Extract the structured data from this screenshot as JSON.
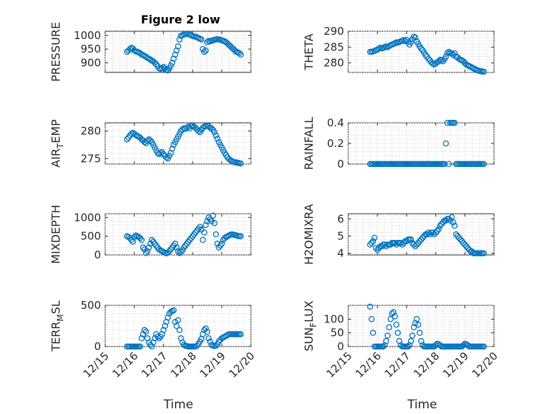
{
  "figure": {
    "title": "Figure 2 low",
    "x_tick_labels": [
      "12/15",
      "12/16",
      "12/17",
      "12/18",
      "12/19",
      "12/20"
    ],
    "x_label": "Time",
    "marker_color": "#0072BD"
  },
  "chart_data": [
    {
      "type": "scatter",
      "ylabel": "PRESSURE",
      "title": "Figure 2 low",
      "xlim": [
        0,
        5
      ],
      "ylim": [
        865,
        1015
      ],
      "yticks": [
        900,
        950,
        1000
      ],
      "x": [
        0.75,
        0.8,
        0.85,
        0.9,
        0.95,
        1.0,
        1.05,
        1.1,
        1.15,
        1.2,
        1.25,
        1.3,
        1.35,
        1.4,
        1.45,
        1.5,
        1.55,
        1.6,
        1.65,
        1.7,
        1.75,
        1.8,
        1.85,
        1.9,
        1.95,
        2.0,
        2.05,
        2.1,
        2.15,
        2.2,
        2.25,
        2.3,
        2.35,
        2.4,
        2.45,
        2.5,
        2.55,
        2.6,
        2.65,
        2.7,
        2.75,
        2.8,
        2.85,
        2.9,
        2.95,
        3.0,
        3.05,
        3.1,
        3.15,
        3.2,
        3.25,
        3.3,
        3.35,
        3.4,
        3.45,
        3.5,
        3.55,
        3.6,
        3.65,
        3.7,
        3.75,
        3.8,
        3.85,
        3.9,
        3.95,
        4.0,
        4.05,
        4.1,
        4.15,
        4.2,
        4.25,
        4.3,
        4.35,
        4.4,
        4.45,
        4.5,
        4.55,
        4.6,
        4.65
      ],
      "y": [
        940,
        945,
        950,
        955,
        952,
        945,
        942,
        940,
        938,
        935,
        930,
        928,
        925,
        922,
        918,
        915,
        912,
        908,
        905,
        900,
        895,
        888,
        880,
        878,
        880,
        885,
        880,
        875,
        872,
        880,
        890,
        900,
        915,
        930,
        945,
        960,
        985,
        998,
        1000,
        1003,
        1005,
        1006,
        1005,
        1003,
        1000,
        998,
        996,
        995,
        993,
        990,
        988,
        985,
        950,
        940,
        945,
        975,
        980,
        978,
        980,
        982,
        984,
        985,
        986,
        985,
        984,
        982,
        980,
        978,
        975,
        970,
        965,
        960,
        955,
        950,
        945,
        940,
        938,
        935,
        930
      ]
    },
    {
      "type": "scatter",
      "ylabel": "THETA",
      "xlim": [
        0,
        5
      ],
      "ylim": [
        277,
        290
      ],
      "yticks": [
        280,
        285,
        290
      ],
      "x": [
        0.75,
        0.8,
        0.85,
        0.9,
        0.95,
        1.0,
        1.05,
        1.1,
        1.15,
        1.2,
        1.25,
        1.3,
        1.35,
        1.4,
        1.45,
        1.5,
        1.55,
        1.6,
        1.65,
        1.7,
        1.75,
        1.8,
        1.85,
        1.9,
        1.95,
        2.0,
        2.05,
        2.1,
        2.15,
        2.2,
        2.25,
        2.3,
        2.35,
        2.4,
        2.45,
        2.5,
        2.55,
        2.6,
        2.65,
        2.7,
        2.75,
        2.8,
        2.85,
        2.9,
        2.95,
        3.0,
        3.05,
        3.1,
        3.15,
        3.2,
        3.25,
        3.3,
        3.35,
        3.4,
        3.45,
        3.5,
        3.55,
        3.6,
        3.65,
        3.7,
        3.75,
        3.8,
        3.85,
        3.9,
        3.95,
        4.0,
        4.05,
        4.1,
        4.15,
        4.2,
        4.25,
        4.3,
        4.35,
        4.4,
        4.45,
        4.5,
        4.55,
        4.6,
        4.65
      ],
      "y": [
        283.5,
        283.5,
        283.6,
        283.8,
        284.0,
        284.2,
        284.5,
        284.8,
        284.6,
        284.7,
        285.0,
        285.2,
        285.0,
        285.3,
        285.6,
        285.8,
        286.0,
        286.2,
        286.5,
        286.4,
        286.6,
        286.8,
        287.0,
        287.2,
        286.9,
        287.3,
        286.5,
        285.8,
        286.5,
        287.5,
        288.3,
        288.0,
        286.8,
        286.0,
        285.2,
        284.5,
        284.0,
        283.3,
        282.5,
        282.0,
        281.3,
        280.8,
        280.2,
        279.8,
        279.5,
        279.8,
        280.2,
        280.5,
        281.0,
        280.8,
        280.5,
        281.2,
        282.0,
        283.0,
        283.5,
        283.2,
        283.0,
        282.5,
        283.0,
        282.0,
        281.8,
        281.3,
        281.0,
        280.8,
        280.5,
        280.0,
        279.5,
        279.2,
        279.0,
        278.8,
        278.5,
        278.3,
        278.0,
        277.8,
        277.6,
        277.5,
        277.4,
        277.3,
        277.2
      ]
    },
    {
      "type": "scatter",
      "ylabel": "AIR_TEMP",
      "xlim": [
        0,
        5
      ],
      "ylim": [
        274,
        281.5
      ],
      "yticks": [
        275,
        280
      ],
      "x": [
        0.75,
        0.8,
        0.85,
        0.9,
        0.95,
        1.0,
        1.05,
        1.1,
        1.15,
        1.2,
        1.25,
        1.3,
        1.35,
        1.4,
        1.45,
        1.5,
        1.55,
        1.6,
        1.65,
        1.7,
        1.75,
        1.8,
        1.85,
        1.9,
        1.95,
        2.0,
        2.05,
        2.1,
        2.15,
        2.2,
        2.25,
        2.3,
        2.35,
        2.4,
        2.45,
        2.5,
        2.55,
        2.6,
        2.65,
        2.7,
        2.75,
        2.8,
        2.85,
        2.9,
        2.95,
        3.0,
        3.05,
        3.1,
        3.15,
        3.2,
        3.25,
        3.3,
        3.35,
        3.4,
        3.45,
        3.5,
        3.55,
        3.6,
        3.65,
        3.7,
        3.75,
        3.8,
        3.85,
        3.9,
        3.95,
        4.0,
        4.05,
        4.1,
        4.15,
        4.2,
        4.25,
        4.3,
        4.35,
        4.4,
        4.45,
        4.5,
        4.55,
        4.6,
        4.65
      ],
      "y": [
        278.5,
        278.8,
        279.2,
        279.5,
        279.7,
        279.5,
        279.3,
        279.1,
        279.0,
        278.8,
        278.5,
        278.3,
        278.0,
        277.8,
        278.2,
        278.5,
        278.3,
        278.0,
        277.5,
        277.0,
        276.5,
        276.0,
        275.8,
        276.0,
        276.2,
        275.8,
        275.5,
        275.2,
        275.0,
        275.5,
        276.0,
        276.8,
        277.5,
        278.0,
        278.5,
        279.0,
        279.5,
        280.0,
        280.3,
        280.5,
        280.4,
        280.6,
        280.8,
        280.5,
        280.9,
        281.0,
        280.8,
        280.6,
        280.3,
        280.0,
        279.8,
        280.2,
        280.6,
        280.8,
        280.9,
        281.0,
        280.9,
        280.6,
        280.5,
        280.2,
        279.8,
        279.2,
        278.6,
        278.0,
        277.5,
        277.0,
        276.5,
        276.0,
        275.6,
        275.2,
        274.9,
        274.7,
        274.5,
        274.4,
        274.3,
        274.3,
        274.2,
        274.2,
        274.1
      ]
    },
    {
      "type": "scatter",
      "ylabel": "RAINFALL",
      "xlim": [
        0,
        5
      ],
      "ylim": [
        0,
        0.4
      ],
      "yticks": [
        0,
        0.2,
        0.4
      ],
      "ytick_labels": [
        "0",
        "0.2",
        "0.4"
      ],
      "x": [
        0.75,
        0.8,
        0.85,
        0.9,
        0.95,
        1.0,
        1.05,
        1.1,
        1.15,
        1.2,
        1.25,
        1.3,
        1.35,
        1.4,
        1.45,
        1.5,
        1.55,
        1.6,
        1.65,
        1.7,
        1.75,
        1.8,
        1.85,
        1.9,
        1.95,
        2.0,
        2.05,
        2.1,
        2.15,
        2.2,
        2.25,
        2.3,
        2.35,
        2.4,
        2.45,
        2.5,
        2.55,
        2.6,
        2.65,
        2.7,
        2.75,
        2.8,
        2.85,
        2.9,
        2.95,
        3.0,
        3.05,
        3.1,
        3.15,
        3.2,
        3.25,
        3.3,
        3.35,
        3.4,
        3.45,
        3.5,
        3.55,
        3.6,
        3.65,
        3.7,
        3.75,
        3.8,
        3.85,
        3.9,
        3.95,
        4.0,
        4.05,
        4.1,
        4.15,
        4.2,
        4.25,
        4.3,
        4.35,
        4.4,
        4.45,
        4.5,
        4.55,
        4.6,
        4.65
      ],
      "y": [
        0,
        0,
        0,
        0,
        0,
        0,
        0,
        0,
        0,
        0,
        0,
        0,
        0,
        0,
        0,
        0,
        0,
        0,
        0,
        0,
        0,
        0,
        0,
        0,
        0,
        0,
        0,
        0,
        0,
        0,
        0,
        0,
        0,
        0,
        0,
        0,
        0,
        0,
        0,
        0,
        0,
        0,
        0,
        0,
        0,
        0,
        0,
        0,
        0,
        0,
        0,
        0,
        0.2,
        0.4,
        0,
        0.4,
        0.4,
        0.4,
        0.4,
        0,
        0,
        0,
        0,
        0,
        0,
        0,
        0,
        0,
        0,
        0,
        0,
        0,
        0,
        0,
        0,
        0,
        0,
        0,
        0
      ]
    },
    {
      "type": "scatter",
      "ylabel": "MIXDEPTH",
      "xlim": [
        0,
        5
      ],
      "ylim": [
        0,
        1100
      ],
      "yticks": [
        0,
        500,
        1000
      ],
      "x": [
        0.75,
        0.8,
        0.85,
        0.9,
        0.95,
        1.0,
        1.05,
        1.1,
        1.15,
        1.2,
        1.25,
        1.3,
        1.35,
        1.4,
        1.45,
        1.5,
        1.55,
        1.6,
        1.65,
        1.7,
        1.75,
        1.8,
        1.85,
        1.9,
        1.95,
        2.0,
        2.05,
        2.1,
        2.15,
        2.2,
        2.25,
        2.3,
        2.35,
        2.4,
        2.45,
        2.5,
        2.55,
        2.6,
        2.65,
        2.7,
        2.75,
        2.8,
        2.85,
        2.9,
        2.95,
        3.0,
        3.05,
        3.1,
        3.15,
        3.2,
        3.25,
        3.3,
        3.35,
        3.4,
        3.45,
        3.5,
        3.55,
        3.6,
        3.65,
        3.7,
        3.75,
        3.8,
        3.85,
        3.9,
        3.95,
        4.0,
        4.05,
        4.1,
        4.15,
        4.2,
        4.25,
        4.3,
        4.35,
        4.4,
        4.45,
        4.5,
        4.55,
        4.6,
        4.65
      ],
      "y": [
        500,
        480,
        450,
        400,
        350,
        480,
        520,
        500,
        480,
        450,
        400,
        200,
        150,
        50,
        100,
        200,
        300,
        400,
        350,
        300,
        250,
        200,
        150,
        120,
        100,
        80,
        60,
        40,
        60,
        100,
        150,
        200,
        250,
        300,
        200,
        100,
        50,
        80,
        120,
        200,
        250,
        300,
        350,
        400,
        450,
        500,
        550,
        600,
        650,
        700,
        750,
        680,
        400,
        600,
        800,
        900,
        1000,
        950,
        900,
        1050,
        850,
        550,
        300,
        200,
        250,
        300,
        400,
        450,
        480,
        500,
        520,
        540,
        550,
        540,
        530,
        520,
        510,
        500,
        500
      ]
    },
    {
      "type": "scatter",
      "ylabel": "H2OMIXRA",
      "xlim": [
        0,
        5
      ],
      "ylim": [
        3.9,
        6.3
      ],
      "yticks": [
        4,
        5,
        6
      ],
      "x": [
        0.75,
        0.8,
        0.85,
        0.9,
        0.95,
        1.0,
        1.05,
        1.1,
        1.15,
        1.2,
        1.25,
        1.3,
        1.35,
        1.4,
        1.45,
        1.5,
        1.55,
        1.6,
        1.65,
        1.7,
        1.75,
        1.8,
        1.85,
        1.9,
        1.95,
        2.0,
        2.05,
        2.1,
        2.15,
        2.2,
        2.25,
        2.3,
        2.35,
        2.4,
        2.45,
        2.5,
        2.55,
        2.6,
        2.65,
        2.7,
        2.75,
        2.8,
        2.85,
        2.9,
        2.95,
        3.0,
        3.05,
        3.1,
        3.15,
        3.2,
        3.25,
        3.3,
        3.35,
        3.4,
        3.45,
        3.5,
        3.55,
        3.6,
        3.65,
        3.7,
        3.75,
        3.8,
        3.85,
        3.9,
        3.95,
        4.0,
        4.05,
        4.1,
        4.15,
        4.2,
        4.25,
        4.3,
        4.35,
        4.4,
        4.45,
        4.5,
        4.55,
        4.6,
        4.65
      ],
      "y": [
        4.5,
        4.6,
        4.7,
        4.9,
        4.3,
        4.2,
        4.3,
        4.4,
        4.4,
        4.5,
        4.5,
        4.4,
        4.5,
        4.5,
        4.5,
        4.6,
        4.6,
        4.6,
        4.5,
        4.6,
        4.6,
        4.6,
        4.5,
        4.6,
        4.7,
        4.7,
        4.8,
        4.8,
        4.8,
        4.6,
        4.5,
        4.4,
        4.5,
        4.6,
        4.7,
        4.8,
        4.9,
        5.0,
        5.1,
        5.1,
        5.2,
        5.1,
        5.2,
        5.2,
        5.1,
        5.2,
        5.3,
        5.4,
        5.6,
        5.7,
        5.8,
        5.9,
        5.9,
        6.0,
        6.0,
        5.9,
        6.1,
        5.8,
        5.6,
        5.1,
        5.0,
        4.9,
        4.8,
        4.7,
        4.6,
        4.5,
        4.4,
        4.3,
        4.2,
        4.1,
        4.1,
        4.0,
        4.0,
        4.0,
        4.0,
        4.0,
        4.0,
        4.0,
        4.0
      ]
    },
    {
      "type": "scatter",
      "ylabel": "TERR_MSL",
      "xlim": [
        0,
        5
      ],
      "ylim": [
        0,
        500
      ],
      "yticks": [
        0,
        500
      ],
      "x": [
        0.75,
        0.8,
        0.85,
        0.9,
        0.95,
        1.0,
        1.05,
        1.1,
        1.15,
        1.2,
        1.25,
        1.3,
        1.35,
        1.4,
        1.45,
        1.5,
        1.55,
        1.6,
        1.65,
        1.7,
        1.75,
        1.8,
        1.85,
        1.9,
        1.95,
        2.0,
        2.05,
        2.1,
        2.15,
        2.2,
        2.25,
        2.3,
        2.35,
        2.4,
        2.45,
        2.5,
        2.55,
        2.6,
        2.65,
        2.7,
        2.75,
        2.8,
        2.85,
        2.9,
        2.95,
        3.0,
        3.05,
        3.1,
        3.15,
        3.2,
        3.25,
        3.3,
        3.35,
        3.4,
        3.45,
        3.5,
        3.55,
        3.6,
        3.65,
        3.7,
        3.75,
        3.8,
        3.85,
        3.9,
        3.95,
        4.0,
        4.05,
        4.1,
        4.15,
        4.2,
        4.25,
        4.3,
        4.35,
        4.4,
        4.45,
        4.5,
        4.55,
        4.6,
        4.65
      ],
      "y": [
        0,
        0,
        0,
        0,
        0,
        0,
        0,
        0,
        0,
        0,
        100,
        150,
        200,
        180,
        100,
        50,
        20,
        0,
        50,
        100,
        150,
        120,
        100,
        120,
        150,
        200,
        250,
        300,
        350,
        400,
        420,
        430,
        440,
        300,
        250,
        320,
        200,
        100,
        50,
        20,
        10,
        5,
        0,
        0,
        0,
        0,
        0,
        0,
        10,
        30,
        60,
        90,
        150,
        200,
        220,
        180,
        100,
        60,
        20,
        10,
        5,
        10,
        30,
        60,
        80,
        100,
        110,
        120,
        130,
        140,
        150,
        150,
        150,
        150,
        150,
        150,
        150,
        150,
        150
      ]
    },
    {
      "type": "scatter",
      "ylabel": "SUN_FLUX",
      "xlim": [
        0,
        5
      ],
      "ylim": [
        0,
        150
      ],
      "yticks": [
        0,
        50,
        100
      ],
      "x": [
        0.75,
        0.8,
        0.85,
        0.9,
        0.95,
        1.0,
        1.05,
        1.1,
        1.15,
        1.2,
        1.25,
        1.3,
        1.35,
        1.4,
        1.45,
        1.5,
        1.55,
        1.6,
        1.65,
        1.7,
        1.75,
        1.8,
        1.85,
        1.9,
        1.95,
        2.0,
        2.05,
        2.1,
        2.15,
        2.2,
        2.25,
        2.3,
        2.35,
        2.4,
        2.45,
        2.5,
        2.55,
        2.6,
        2.65,
        2.7,
        2.75,
        2.8,
        2.85,
        2.9,
        2.95,
        3.0,
        3.05,
        3.1,
        3.15,
        3.2,
        3.25,
        3.3,
        3.35,
        3.4,
        3.45,
        3.5,
        3.55,
        3.6,
        3.65,
        3.7,
        3.75,
        3.8,
        3.85,
        3.9,
        3.95,
        4.0,
        4.05,
        4.1,
        4.15,
        4.2,
        4.25,
        4.3,
        4.35,
        4.4,
        4.45,
        4.5,
        4.55,
        4.6,
        4.65
      ],
      "y": [
        145,
        100,
        50,
        0,
        0,
        0,
        0,
        0,
        0,
        0,
        5,
        20,
        40,
        70,
        100,
        120,
        125,
        110,
        80,
        50,
        20,
        5,
        0,
        0,
        0,
        0,
        0,
        5,
        20,
        40,
        70,
        85,
        100,
        80,
        50,
        20,
        5,
        0,
        0,
        0,
        0,
        0,
        0,
        0,
        0,
        5,
        10,
        8,
        5,
        0,
        0,
        0,
        0,
        0,
        0,
        0,
        0,
        0,
        0,
        0,
        0,
        0,
        0,
        0,
        5,
        10,
        8,
        5,
        0,
        0,
        0,
        0,
        0,
        0,
        0,
        0,
        0,
        0,
        0
      ]
    }
  ]
}
